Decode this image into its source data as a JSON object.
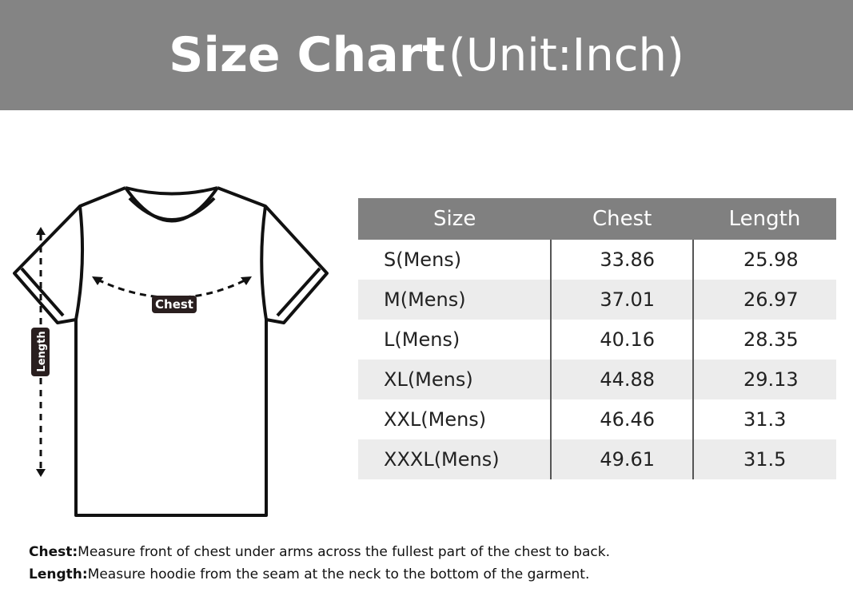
{
  "banner": {
    "title_bold": "Size Chart",
    "title_unit": "(Unit:Inch)"
  },
  "diagram": {
    "chest_label": "Chest",
    "length_label": "Length"
  },
  "table": {
    "headers": [
      "Size",
      "Chest",
      "Length"
    ],
    "rows": [
      [
        "S(Mens)",
        "33.86",
        "25.98"
      ],
      [
        "M(Mens)",
        "37.01",
        "26.97"
      ],
      [
        "L(Mens)",
        "40.16",
        "28.35"
      ],
      [
        "XL(Mens)",
        "44.88",
        "29.13"
      ],
      [
        "XXL(Mens)",
        "46.46",
        "31.3"
      ],
      [
        "XXXL(Mens)",
        "49.61",
        "31.5"
      ]
    ]
  },
  "notes": {
    "chest_term": "Chest:",
    "chest_text": "Measure front of chest under arms across the fullest part of the chest to back.",
    "length_term": "Length:",
    "length_text": "Measure hoodie from the seam at the neck to the bottom of the garment."
  },
  "colors": {
    "header_bg": "#808080",
    "alt_row": "#ececec",
    "banner_bg": "#848484"
  }
}
